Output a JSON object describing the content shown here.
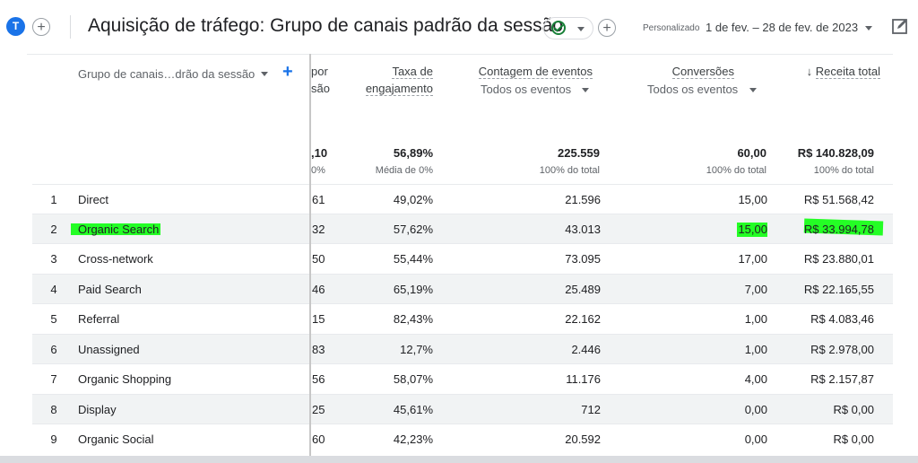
{
  "header": {
    "avatar_letter": "T",
    "title": "Aquisição de tráfego: Grupo de canais padrão da sessão",
    "custom_label": "Personalizado",
    "date_range": "1 de fev. – 28 de fev. de 2023",
    "add_symbol": "+"
  },
  "table": {
    "dimension_header": "Grupo de canais…drão da sessão",
    "add_dimension": "+",
    "partial_header_line1": "por",
    "partial_header_line2": "são",
    "columns": {
      "engagement": {
        "line1": "Taxa de",
        "line2": "engajamento"
      },
      "events": {
        "label": "Contagem de eventos",
        "filter": "Todos os eventos"
      },
      "conversions": {
        "label": "Conversões",
        "filter": "Todos os eventos"
      },
      "revenue": {
        "label": "Receita total",
        "sort_icon": "↓"
      }
    },
    "totals": {
      "partial": ",10",
      "partial_sub": "0%",
      "engagement": "56,89%",
      "engagement_sub": "Média de 0%",
      "events": "225.559",
      "events_sub": "100% do total",
      "conversions": "60,00",
      "conversions_sub": "100% do total",
      "revenue": "R$ 140.828,09",
      "revenue_sub": "100% do total"
    },
    "rows": [
      {
        "n": "1",
        "channel": "Direct",
        "partial": "61",
        "engagement": "49,02%",
        "events": "21.596",
        "conversions": "15,00",
        "revenue": "R$ 51.568,42"
      },
      {
        "n": "2",
        "channel": "Organic Search",
        "partial": "32",
        "engagement": "57,62%",
        "events": "43.013",
        "conversions": "15,00",
        "revenue": "R$ 33.994,78"
      },
      {
        "n": "3",
        "channel": "Cross-network",
        "partial": "50",
        "engagement": "55,44%",
        "events": "73.095",
        "conversions": "17,00",
        "revenue": "R$ 23.880,01"
      },
      {
        "n": "4",
        "channel": "Paid Search",
        "partial": "46",
        "engagement": "65,19%",
        "events": "25.489",
        "conversions": "7,00",
        "revenue": "R$ 22.165,55"
      },
      {
        "n": "5",
        "channel": "Referral",
        "partial": "15",
        "engagement": "82,43%",
        "events": "22.162",
        "conversions": "1,00",
        "revenue": "R$ 4.083,46"
      },
      {
        "n": "6",
        "channel": "Unassigned",
        "partial": "83",
        "engagement": "12,7%",
        "events": "2.446",
        "conversions": "1,00",
        "revenue": "R$ 2.978,00"
      },
      {
        "n": "7",
        "channel": "Organic Shopping",
        "partial": "56",
        "engagement": "58,07%",
        "events": "11.176",
        "conversions": "4,00",
        "revenue": "R$ 2.157,87"
      },
      {
        "n": "8",
        "channel": "Display",
        "partial": "25",
        "engagement": "45,61%",
        "events": "712",
        "conversions": "0,00",
        "revenue": "R$ 0,00"
      },
      {
        "n": "9",
        "channel": "Organic Social",
        "partial": "60",
        "engagement": "42,23%",
        "events": "20.592",
        "conversions": "0,00",
        "revenue": "R$ 0,00"
      }
    ]
  },
  "colors": {
    "highlight": "#00ff00",
    "accent": "#1a73e8",
    "success": "#188038"
  }
}
